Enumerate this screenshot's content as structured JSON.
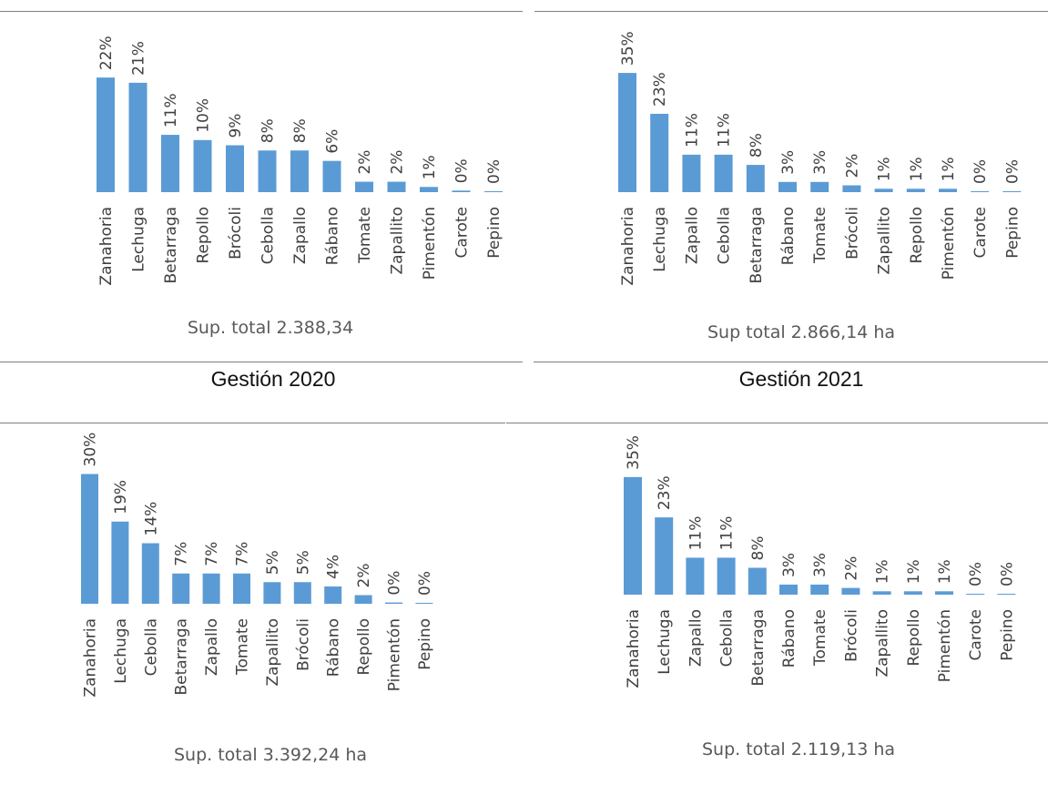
{
  "colors": {
    "bar": "#5b9bd5",
    "rule": "#7f7f7f"
  },
  "section_titles": [
    "Gestión 2020",
    "Gestión 2021"
  ],
  "chart_data": [
    {
      "type": "bar",
      "categories": [
        "Zanahoria",
        "Lechuga",
        "Betarraga",
        "Repollo",
        "Brócoli",
        "Cebolla",
        "Zapallo",
        "Rábano",
        "Tomate",
        "Zapallito",
        "Pimentón",
        "Carote",
        "Pepino"
      ],
      "values": [
        22,
        21,
        11,
        10,
        9,
        8,
        8,
        6,
        2,
        2,
        1,
        0.3,
        0.1
      ],
      "labels": [
        "22%",
        "21%",
        "11%",
        "10%",
        "9%",
        "8%",
        "8%",
        "6%",
        "2%",
        "2%",
        "1%",
        "0%",
        "0%"
      ],
      "total_label": "Sup. total 2.388,34"
    },
    {
      "type": "bar",
      "categories": [
        "Zanahoria",
        "Lechuga",
        "Zapallo",
        "Cebolla",
        "Betarraga",
        "Rábano",
        "Tomate",
        "Brócoli",
        "Zapallito",
        "Repollo",
        "Pimentón",
        "Carote",
        "Pepino"
      ],
      "values": [
        35,
        23,
        11,
        11,
        8,
        3,
        3,
        2,
        1,
        1,
        1,
        0.2,
        0.1
      ],
      "labels": [
        "35%",
        "23%",
        "11%",
        "11%",
        "8%",
        "3%",
        "3%",
        "2%",
        "1%",
        "1%",
        "1%",
        "0%",
        "0%"
      ],
      "total_label": "Sup total 2.866,14 ha"
    },
    {
      "type": "bar",
      "categories": [
        "Zanahoria",
        "Lechuga",
        "Cebolla",
        "Betarraga",
        "Zapallo",
        "Tomate",
        "Zapallito",
        "Brócoli",
        "Rábano",
        "Repollo",
        "Pimentón",
        "Pepino"
      ],
      "values": [
        30,
        19,
        14,
        7,
        7,
        7,
        5,
        5,
        4,
        2,
        0.3,
        0.1
      ],
      "labels": [
        "30%",
        "19%",
        "14%",
        "7%",
        "7%",
        "7%",
        "5%",
        "5%",
        "4%",
        "2%",
        "0%",
        "0%"
      ],
      "total_label": "Sup. total 3.392,24 ha"
    },
    {
      "type": "bar",
      "categories": [
        "Zanahoria",
        "Lechuga",
        "Zapallo",
        "Cebolla",
        "Betarraga",
        "Rábano",
        "Tomate",
        "Brócoli",
        "Zapallito",
        "Repollo",
        "Pimentón",
        "Carote",
        "Pepino"
      ],
      "values": [
        35,
        23,
        11,
        11,
        8,
        3,
        3,
        2,
        1,
        1,
        1,
        0.2,
        0.1
      ],
      "labels": [
        "35%",
        "23%",
        "11%",
        "11%",
        "8%",
        "3%",
        "3%",
        "2%",
        "1%",
        "1%",
        "1%",
        "0%",
        "0%"
      ],
      "total_label": "Sup. total 2.119,13 ha"
    }
  ]
}
